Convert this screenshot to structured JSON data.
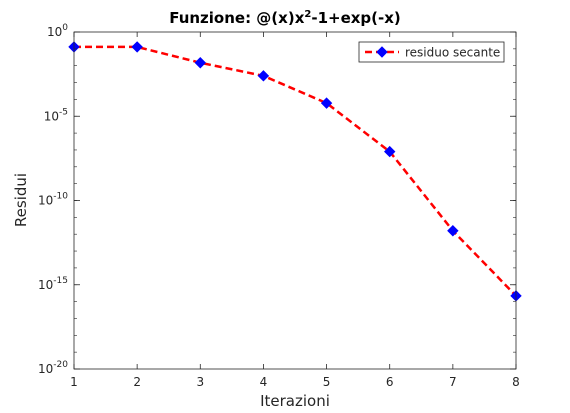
{
  "title": {
    "prefix": "Funzione: @(x)x",
    "sup": "2",
    "suffix": "-1+exp(-x)"
  },
  "chart_data": {
    "type": "line",
    "title": "Funzione: @(x)x^2-1+exp(-x)",
    "xlabel": "Iterazioni",
    "ylabel": "Residui",
    "xlim": [
      1,
      8
    ],
    "ylim": [
      1e-20,
      1
    ],
    "yscale": "log",
    "x_ticks": [
      "1",
      "2",
      "3",
      "4",
      "5",
      "6",
      "7",
      "8"
    ],
    "y_ticks": [
      {
        "base": "10",
        "exp": "0",
        "value": 1
      },
      {
        "base": "10",
        "exp": "-5",
        "value": 1e-05
      },
      {
        "base": "10",
        "exp": "-10",
        "value": 1e-10
      },
      {
        "base": "10",
        "exp": "-15",
        "value": 1e-15
      },
      {
        "base": "10",
        "exp": "-20",
        "value": 1e-20
      }
    ],
    "grid": false,
    "legend_position": "top-right",
    "series": [
      {
        "name": "residuo secante",
        "color": "#ff0000",
        "marker_color": "#0000ff",
        "line_style": "dashed",
        "marker": "diamond",
        "x": [
          1,
          2,
          3,
          4,
          5,
          6,
          7,
          8
        ],
        "y": [
          0.13,
          0.13,
          0.015,
          0.0025,
          6e-05,
          8e-08,
          1.6e-12,
          2.2e-16
        ]
      }
    ]
  }
}
